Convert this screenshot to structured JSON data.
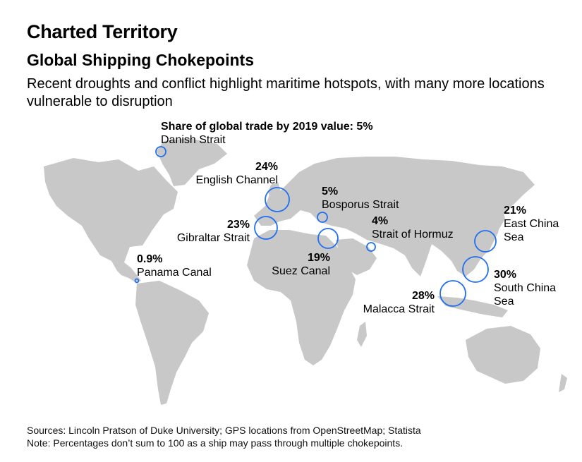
{
  "header": {
    "brand": "Charted Territory",
    "title": "Global Shipping Chokepoints",
    "subtitle": "Recent droughts and conflict highlight maritime hotspots, with many more locations vulnerable to disruption"
  },
  "legend": {
    "heading": "Share of global trade by 2019 value: 5%"
  },
  "colors": {
    "land": "#c8c8c8",
    "bubble": "#1f6ff0"
  },
  "chokepoints": [
    {
      "name": "Danish Strait",
      "share": "5%",
      "value": 5
    },
    {
      "name": "English Channel",
      "share": "24%",
      "value": 24
    },
    {
      "name": "Bosporus Strait",
      "share": "5%",
      "value": 5
    },
    {
      "name": "Gibraltar Strait",
      "share": "23%",
      "value": 23
    },
    {
      "name": "Strait of Hormuz",
      "share": "4%",
      "value": 4
    },
    {
      "name": "Suez Canal",
      "share": "19%",
      "value": 19
    },
    {
      "name": "Panama Canal",
      "share": "0.9%",
      "value": 0.9
    },
    {
      "name": "Malacca Strait",
      "share": "28%",
      "value": 28
    },
    {
      "name": "East China Sea",
      "name_line1": "East China",
      "name_line2": "Sea",
      "share": "21%",
      "value": 21
    },
    {
      "name": "South China Sea",
      "name_line1": "South China",
      "name_line2": "Sea",
      "share": "30%",
      "value": 30
    }
  ],
  "footer": {
    "sources": "Sources: Lincoln Pratson of Duke University; GPS locations from OpenStreetMap; Statista",
    "note": "Note: Percentages don’t sum to 100 as a ship may pass through multiple chokepoints."
  }
}
